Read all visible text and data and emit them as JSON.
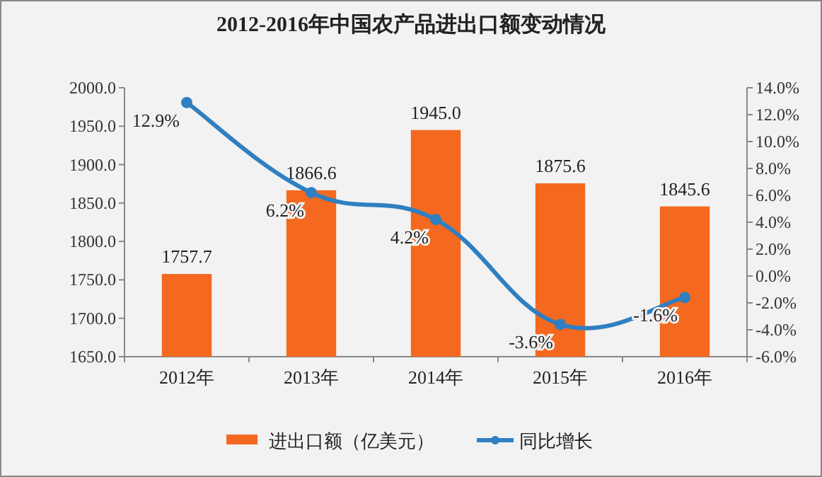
{
  "chart_data": {
    "type": "bar",
    "title": "2012-2016年中国农产品进出口额变动情况",
    "categories": [
      "2012年",
      "2013年",
      "2014年",
      "2015年",
      "2016年"
    ],
    "series": [
      {
        "name": "进出口额（亿美元）",
        "color": "#f4691f",
        "values": [
          1757.7,
          1866.6,
          1945.0,
          1875.6,
          1845.6
        ],
        "value_labels": [
          "1757.7",
          "1866.6",
          "1945.0",
          "1875.6",
          "1845.6"
        ]
      },
      {
        "name": "同比增长",
        "type": "line",
        "axis": "y2",
        "color": "#2f7fc1",
        "marker": "circle",
        "values": [
          12.9,
          6.2,
          4.2,
          -3.6,
          -1.6
        ],
        "value_labels": [
          "12.9%",
          "6.2%",
          "4.2%",
          "-3.6%",
          "-1.6%"
        ]
      }
    ],
    "ylim": [
      1650,
      2000
    ],
    "yticks": [
      {
        "value": 1650,
        "label": "1650.0"
      },
      {
        "value": 1700,
        "label": "1700.0"
      },
      {
        "value": 1750,
        "label": "1750.0"
      },
      {
        "value": 1800,
        "label": "1800.0"
      },
      {
        "value": 1850,
        "label": "1850.0"
      },
      {
        "value": 1900,
        "label": "1900.0"
      },
      {
        "value": 1950,
        "label": "1950.0"
      },
      {
        "value": 2000,
        "label": "2000.0"
      }
    ],
    "y2lim": [
      -6,
      14
    ],
    "y2ticks": [
      {
        "value": -6,
        "label": "-6.0%"
      },
      {
        "value": -4,
        "label": "-4.0%"
      },
      {
        "value": -2,
        "label": "-2.0%"
      },
      {
        "value": 0,
        "label": "0.0%"
      },
      {
        "value": 2,
        "label": "2.0%"
      },
      {
        "value": 4,
        "label": "4.0%"
      },
      {
        "value": 6,
        "label": "6.0%"
      },
      {
        "value": 8,
        "label": "8.0%"
      },
      {
        "value": 10,
        "label": "10.0%"
      },
      {
        "value": 12,
        "label": "12.0%"
      },
      {
        "value": 14,
        "label": "14.0%"
      }
    ],
    "legend": "bottom",
    "grid": false
  }
}
